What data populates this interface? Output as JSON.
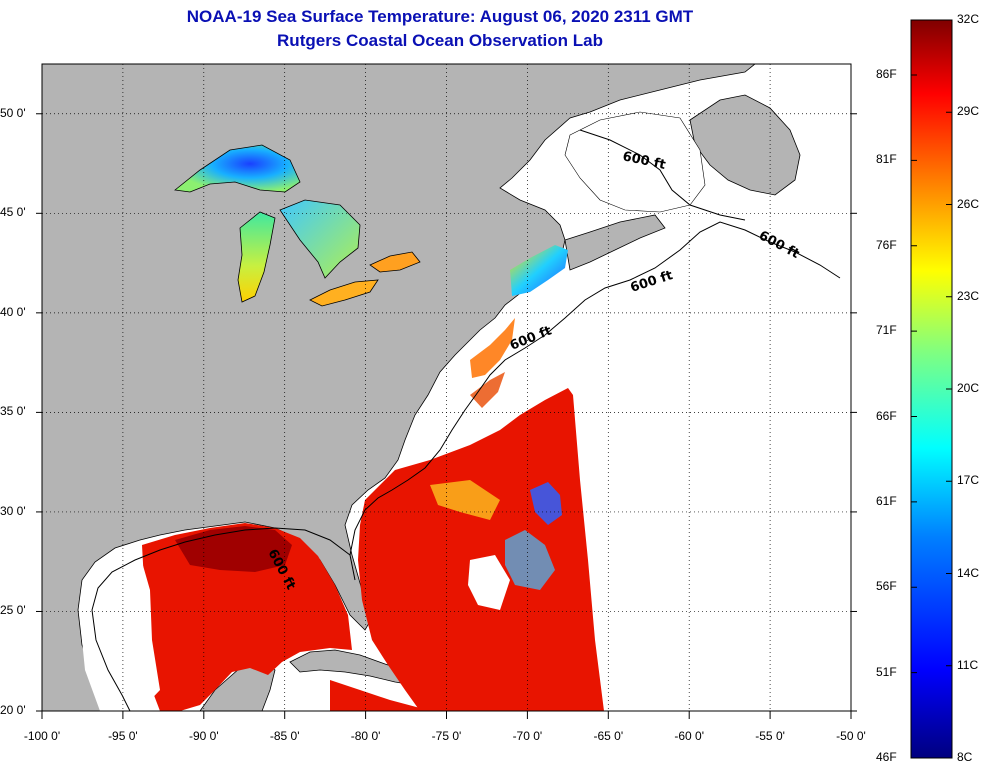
{
  "title": {
    "line1": "NOAA-19 Sea Surface Temperature:  August 06, 2020 2311 GMT",
    "line2": "Rutgers Coastal Ocean Observation Lab"
  },
  "axes": {
    "lon_labels": [
      "-100 0'",
      "-95 0'",
      "-90 0'",
      "-85 0'",
      "-80 0'",
      "-75 0'",
      "-70 0'",
      "-65 0'",
      "-60 0'",
      "-55 0'",
      "-50 0'"
    ],
    "lon_values": [
      -100,
      -95,
      -90,
      -85,
      -80,
      -75,
      -70,
      -65,
      -60,
      -55,
      -50
    ],
    "lat_labels": [
      "50 0'",
      "45 0'",
      "40 0'",
      "35 0'",
      "30 0'",
      "25 0'",
      "20 0'"
    ],
    "lat_values": [
      50,
      45,
      40,
      35,
      30,
      25,
      20
    ],
    "lon_range": [
      -100,
      -50
    ],
    "lat_range": [
      20,
      52.5
    ]
  },
  "contour_labels": [
    "600 ft",
    "600 ft",
    "600 ft",
    "600 ft",
    "600 ft"
  ],
  "colorbar": {
    "celsius": [
      "32C",
      "29C",
      "26C",
      "23C",
      "20C",
      "17C",
      "14C",
      "11C",
      "8C"
    ],
    "fahrenheit": [
      "86F",
      "81F",
      "76F",
      "71F",
      "66F",
      "61F",
      "56F",
      "51F",
      "46F"
    ],
    "range_c": [
      8,
      32
    ],
    "colors": [
      "#00007f",
      "#0000ff",
      "#0080ff",
      "#00ffff",
      "#80ff80",
      "#ffff00",
      "#ff8000",
      "#ff0000",
      "#7f0000"
    ]
  },
  "colors": {
    "land": "#b4b4b4",
    "ocean_nodata": "#ffffff",
    "title": "#0a10b4",
    "warm_sst": "#e81400",
    "very_warm_sst": "#a00000",
    "cool_sst": "#2a8cff"
  }
}
